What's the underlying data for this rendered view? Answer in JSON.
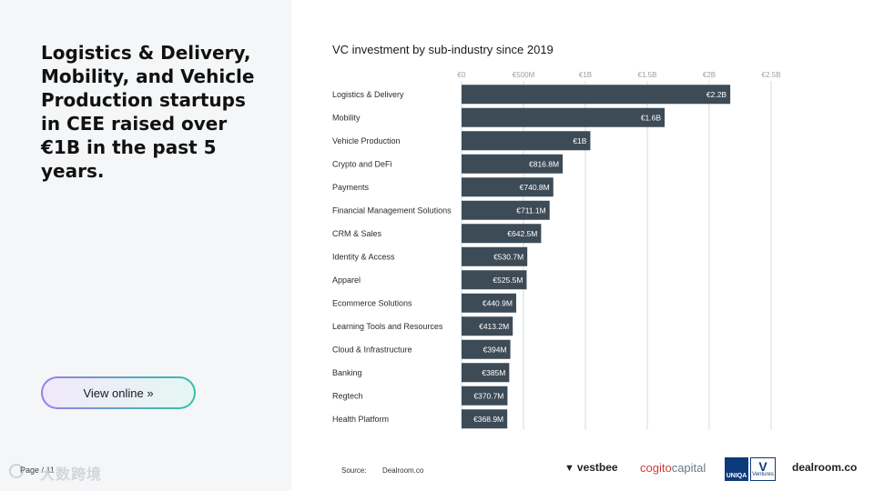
{
  "headline": "Logistics & Delivery, Mobility, and Vehicle Production startups in CEE raised over €1B in the past 5 years.",
  "view_online": "View online »",
  "page_label": "Page / 11",
  "watermark": "大数跨境",
  "source": {
    "label": "Source:",
    "value": "Dealroom.co"
  },
  "logos": {
    "vestbee": "vestbee",
    "cogito_a": "cogito",
    "cogito_b": "capital",
    "uniqa_left": "UNIQA",
    "uniqa_mark": "V",
    "uniqa_right": "Ventures",
    "dealroom": "dealroom.co"
  },
  "colors": {
    "bar": "#3d4b57",
    "grid": "#d4d8db",
    "label_text": "#ffffff"
  },
  "chart_data": {
    "type": "bar",
    "orientation": "horizontal",
    "title": "VC investment by sub-industry since  2019",
    "xlabel": "",
    "ylabel": "",
    "xlim": [
      0,
      2.5
    ],
    "ticks": [
      {
        "value": 0,
        "label": "€0"
      },
      {
        "value": 0.5,
        "label": "€500M"
      },
      {
        "value": 1.0,
        "label": "€1B"
      },
      {
        "value": 1.5,
        "label": "€1.5B"
      },
      {
        "value": 2.0,
        "label": "€2B"
      },
      {
        "value": 2.5,
        "label": "€2.5B"
      }
    ],
    "grid": true,
    "categories": [
      "Logistics & Delivery",
      "Mobility",
      "Vehicle Production",
      "Crypto and DeFi",
      "Payments",
      "Financial Management Solutions",
      "CRM & Sales",
      "Identity & Access",
      "Apparel",
      "Ecommerce Solutions",
      "Learning Tools and Resources",
      "Cloud & Infrastructure",
      "Banking",
      "Regtech",
      "Health Platform"
    ],
    "values": [
      2.17,
      1.64,
      1.04,
      0.8168,
      0.7408,
      0.7111,
      0.6425,
      0.5307,
      0.5255,
      0.4409,
      0.4132,
      0.394,
      0.385,
      0.3707,
      0.3689
    ],
    "value_labels": [
      "€2.2B",
      "€1.6B",
      "€1B",
      "€816.8M",
      "€740.8M",
      "€711.1M",
      "€642.5M",
      "€530.7M",
      "€525.5M",
      "€440.9M",
      "€413.2M",
      "€394M",
      "€385M",
      "€370.7M",
      "€368.9M"
    ],
    "unit": "€ billions"
  }
}
